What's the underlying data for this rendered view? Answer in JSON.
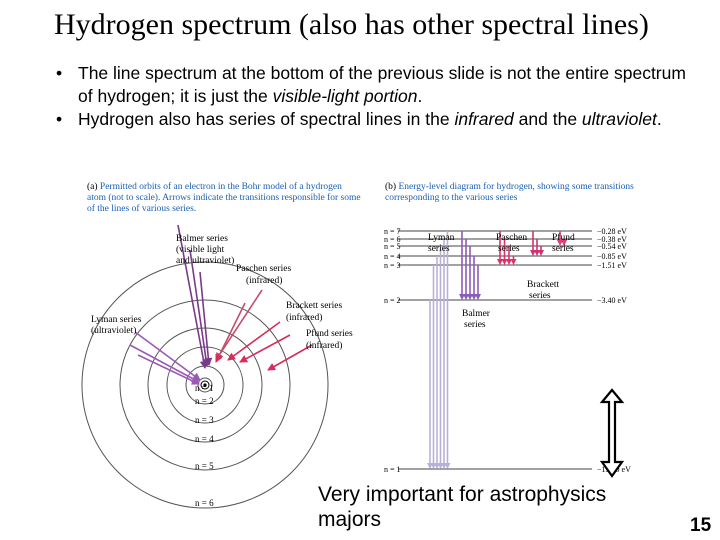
{
  "slide": {
    "title": "Hydrogen spectrum (also has other spectral lines)",
    "bullets": [
      {
        "dot": "•",
        "p1": "The line spectrum at the bottom of the previous slide is not the entire spectrum of hydrogen; it is just the ",
        "em1": "visible-light portion",
        "p2": ".",
        "em2": "",
        "p3": ""
      },
      {
        "dot": "•",
        "p1": "Hydrogen also has series of spectral lines in the ",
        "em1": "infrared",
        "p2": " and the ",
        "em2": "ultraviolet",
        "p3": "."
      }
    ],
    "note_line1": "Very important for astrophysics",
    "note_line2": "majors",
    "page_number": "15"
  },
  "diagram_a": {
    "caption_letter": "(a)",
    "caption": " Permitted orbits of an electron in the Bohr model of a hydrogen atom (not to scale). Arrows indicate the transitions responsible for some of the lines of various series.",
    "orbit_labels": [
      "n = 1",
      "n = 2",
      "n = 3",
      "n = 4",
      "n = 5",
      "n = 6"
    ],
    "series_labels": {
      "balmer": [
        "Balmer series",
        "(visible light",
        "and ultraviolet)"
      ],
      "paschen": [
        "Paschen series",
        "(infrared)"
      ],
      "brackett": [
        "Brackett series",
        "(infrared)"
      ],
      "pfund": [
        "Pfund series",
        "(infrared)"
      ],
      "lyman": [
        "Lyman series",
        "(ultraviolet)"
      ]
    },
    "colors": {
      "orbit": "#555555",
      "balmer_arrows": "#7a3a8a",
      "paschen_arrows": "#c0506e",
      "lyman_arrows": "#9b59b6",
      "red_arrows": "#d62d5a"
    }
  },
  "diagram_b": {
    "caption_letter": "(b)",
    "caption": " Energy-level diagram for hydrogen, showing some transitions corresponding to the various series",
    "levels": [
      {
        "n": "n = 7",
        "energy": "−0.28 eV"
      },
      {
        "n": "n = 6",
        "energy": "−0.38 eV"
      },
      {
        "n": "n = 5",
        "energy": "−0.54 eV"
      },
      {
        "n": "n = 4",
        "energy": "−0.85 eV"
      },
      {
        "n": "n = 3",
        "energy": "−1.51 eV"
      },
      {
        "n": "n = 2",
        "energy": "−3.40 eV"
      },
      {
        "n": "n = 1",
        "energy": "−13.60 eV"
      }
    ],
    "series_labels": {
      "lyman": [
        "Lyman",
        "series"
      ],
      "paschen": [
        "Paschen",
        "series"
      ],
      "pfund": [
        "Pfund",
        "series"
      ],
      "brackett": [
        "Brackett",
        "series"
      ],
      "balmer": [
        "Balmer",
        "series"
      ]
    },
    "colors": {
      "level_line": "#444444",
      "lyman_lines": "#b9b0d8",
      "balmer_lines": "#8a5cb8",
      "paschen_lines": "#e0306a",
      "brackett_lines": "#d1306e",
      "pfund_lines": "#e83a7a",
      "big_arrow": "#000000"
    }
  }
}
